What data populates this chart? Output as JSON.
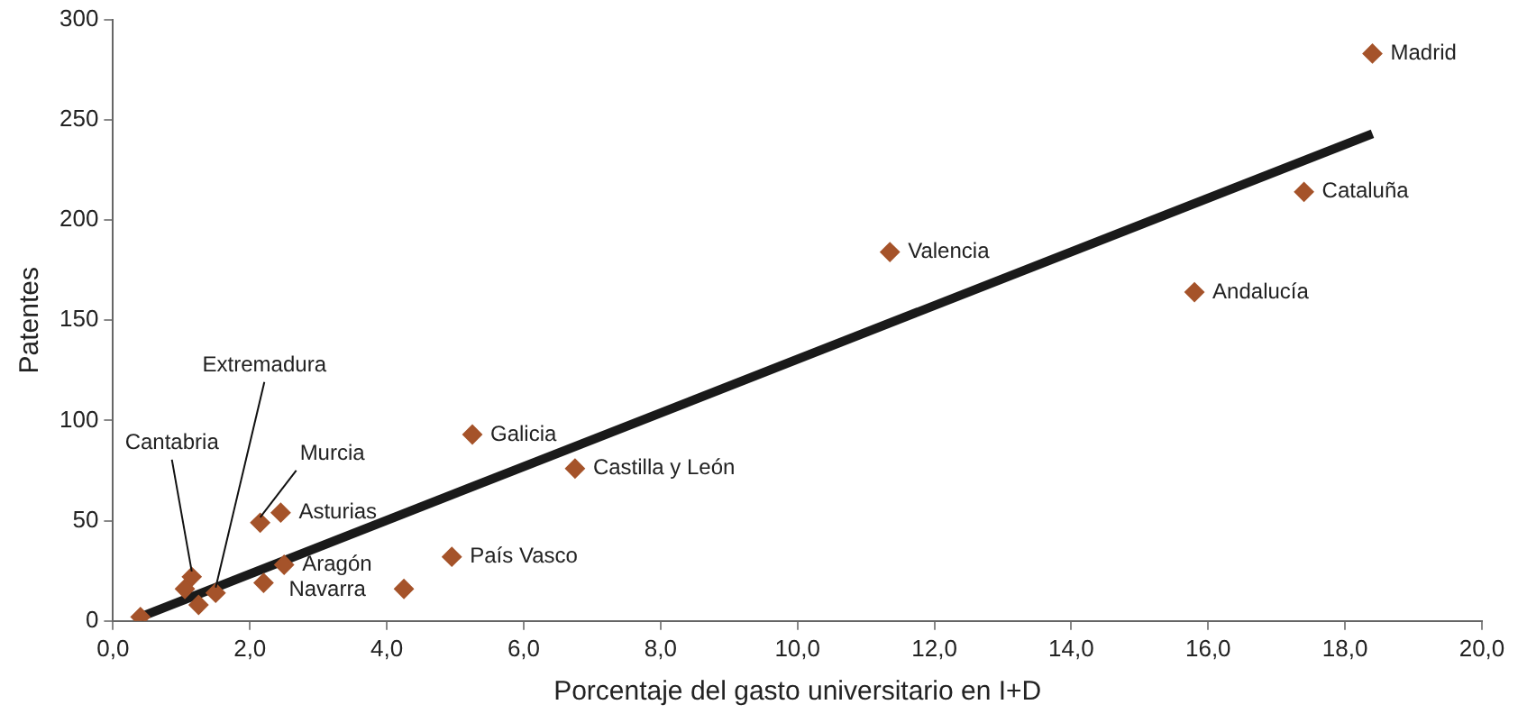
{
  "chart_data": {
    "type": "scatter",
    "xlabel": "Porcentaje del gasto universitario en I+D",
    "ylabel": "Patentes",
    "xlim": [
      0,
      20
    ],
    "xticks": [
      {
        "value": 0,
        "label": "0,0"
      },
      {
        "value": 2,
        "label": "2,0"
      },
      {
        "value": 4,
        "label": "4,0"
      },
      {
        "value": 6,
        "label": "6,0"
      },
      {
        "value": 8,
        "label": "8,0"
      },
      {
        "value": 10,
        "label": "10,0"
      },
      {
        "value": 12,
        "label": "12,0"
      },
      {
        "value": 14,
        "label": "14,0"
      },
      {
        "value": 16,
        "label": "16,0"
      },
      {
        "value": 18,
        "label": "18,0"
      },
      {
        "value": 20,
        "label": "20,0"
      }
    ],
    "ylim": [
      0,
      300
    ],
    "yticks": [
      0,
      50,
      100,
      150,
      200,
      250,
      300
    ],
    "grid": false,
    "legend": false,
    "marker": "diamond",
    "series": [
      {
        "color": "#a5532a",
        "x": [
          0.4,
          1.15,
          1.05,
          1.25,
          1.5,
          2.15,
          2.45,
          2.5,
          2.2,
          4.25,
          4.95,
          5.25,
          6.75,
          11.35,
          15.8,
          17.4,
          18.4
        ],
        "values": [
          2,
          22,
          16,
          8,
          14,
          49,
          54,
          28,
          19,
          16,
          32,
          93,
          76,
          184,
          164,
          214,
          283
        ]
      },
      {
        "type": "line",
        "color": "#1a1a1a",
        "x": [
          0.4,
          18.4
        ],
        "values": [
          2,
          243
        ],
        "marker": "none"
      }
    ],
    "annotations": [
      {
        "text": "Cantabria",
        "x": 1.15,
        "y": 22
      },
      {
        "text": "Extremadura",
        "x": 1.5,
        "y": 14
      },
      {
        "text": "Murcia",
        "x": 2.15,
        "y": 49
      },
      {
        "text": "Asturias",
        "x": 2.45,
        "y": 54
      },
      {
        "text": "Aragón",
        "x": 2.5,
        "y": 28
      },
      {
        "text": "Navarra",
        "x": 2.2,
        "y": 19
      },
      {
        "text": "País Vasco",
        "x": 4.95,
        "y": 32
      },
      {
        "text": "Galicia",
        "x": 5.25,
        "y": 93
      },
      {
        "text": "Castilla y León",
        "x": 6.75,
        "y": 76
      },
      {
        "text": "Valencia",
        "x": 11.35,
        "y": 184
      },
      {
        "text": "Andalucía",
        "x": 15.8,
        "y": 164
      },
      {
        "text": "Cataluña",
        "x": 17.4,
        "y": 214
      },
      {
        "text": "Madrid",
        "x": 18.4,
        "y": 283
      }
    ]
  }
}
